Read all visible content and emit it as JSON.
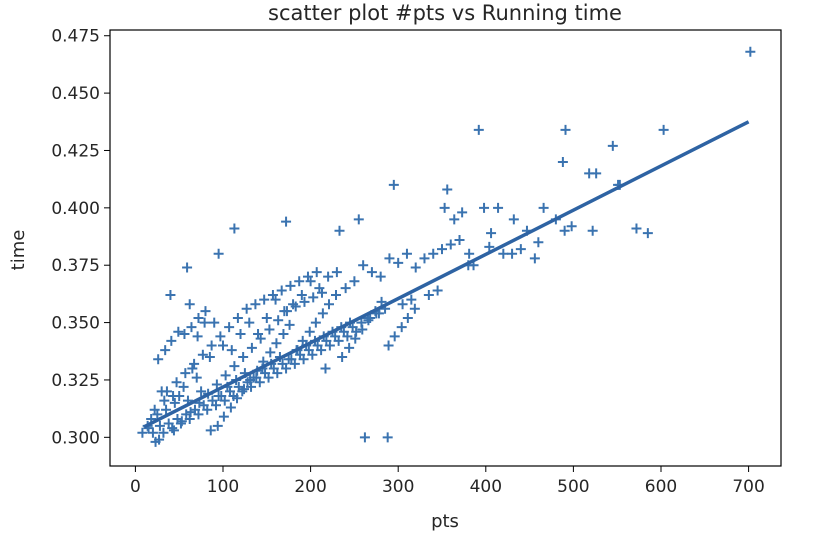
{
  "chart_data": {
    "type": "scatter",
    "title": "scatter plot #pts vs Running time",
    "xlabel": "pts",
    "ylabel": "time",
    "xlim": [
      -29,
      737
    ],
    "ylim": [
      0.2875,
      0.4775
    ],
    "xticks": [
      0,
      100,
      200,
      300,
      400,
      500,
      600,
      700
    ],
    "yticks": [
      0.3,
      0.325,
      0.35,
      0.375,
      0.4,
      0.425,
      0.45,
      0.475
    ],
    "xtick_labels": [
      "0",
      "100",
      "200",
      "300",
      "400",
      "500",
      "600",
      "700"
    ],
    "ytick_labels": [
      "0.300",
      "0.325",
      "0.350",
      "0.375",
      "0.400",
      "0.425",
      "0.450",
      "0.475"
    ],
    "grid": false,
    "marker": "+",
    "color": "#3a73b0",
    "regression_line": {
      "x": [
        10,
        700
      ],
      "y": [
        0.3046,
        0.4375
      ]
    },
    "series": [
      {
        "values_x": [
          702,
          392,
          491,
          603,
          545,
          553,
          526,
          488,
          518,
          364,
          432,
          480,
          466,
          414,
          490,
          551,
          572,
          585,
          498,
          522,
          447,
          430,
          456,
          353,
          373,
          398,
          404,
          295,
          356,
          406,
          381,
          386,
          255,
          233,
          172,
          113,
          95,
          59,
          14,
          23,
          8,
          40,
          62,
          72,
          80,
          90,
          30,
          43,
          55,
          65,
          70,
          85,
          100,
          110,
          120,
          130,
          140,
          150,
          160,
          170,
          180,
          190,
          200,
          210,
          220,
          230,
          240,
          250,
          260,
          270,
          280,
          290,
          300,
          310,
          320,
          330,
          340,
          350,
          360,
          370,
          380,
          420,
          440,
          460,
          25,
          35,
          45,
          50,
          60,
          75,
          95,
          105,
          115,
          125,
          135,
          145,
          155,
          165,
          175,
          185,
          195,
          205,
          215,
          225,
          235,
          245,
          265,
          275,
          285,
          305,
          315,
          335,
          345,
          20,
          28,
          38,
          48,
          58,
          68,
          78,
          88,
          98,
          108,
          118,
          128,
          138,
          148,
          158,
          168,
          178,
          188,
          198,
          208,
          218,
          228,
          238,
          248,
          258,
          268,
          278,
          288,
          32,
          42,
          52,
          62,
          72,
          82,
          92,
          102,
          112,
          122,
          132,
          142,
          152,
          162,
          172,
          182,
          192,
          202,
          212,
          222,
          232,
          242,
          252,
          262,
          15,
          18,
          22,
          27,
          33,
          36,
          44,
          47,
          53,
          57,
          63,
          67,
          73,
          77,
          83,
          87,
          93,
          97,
          103,
          107,
          113,
          117,
          123,
          127,
          133,
          137,
          143,
          147,
          153,
          157,
          163,
          167,
          173,
          177,
          183,
          187,
          193,
          197,
          203,
          207,
          213,
          217,
          26,
          34,
          41,
          49,
          56,
          64,
          71,
          79,
          86,
          94,
          101,
          109,
          116,
          124,
          131,
          139,
          146,
          154,
          161,
          169,
          176,
          184,
          191,
          199,
          206,
          214,
          221,
          229,
          236,
          244,
          251,
          259,
          266,
          274,
          281,
          289,
          296,
          304,
          311,
          319
        ],
        "values_y": [
          0.468,
          0.434,
          0.434,
          0.434,
          0.427,
          0.41,
          0.415,
          0.42,
          0.415,
          0.395,
          0.395,
          0.395,
          0.4,
          0.4,
          0.39,
          0.41,
          0.391,
          0.389,
          0.392,
          0.39,
          0.39,
          0.38,
          0.378,
          0.4,
          0.398,
          0.4,
          0.383,
          0.41,
          0.408,
          0.389,
          0.38,
          0.375,
          0.395,
          0.39,
          0.394,
          0.391,
          0.38,
          0.374,
          0.305,
          0.298,
          0.302,
          0.362,
          0.358,
          0.352,
          0.355,
          0.35,
          0.32,
          0.318,
          0.322,
          0.33,
          0.326,
          0.335,
          0.34,
          0.338,
          0.345,
          0.35,
          0.345,
          0.352,
          0.36,
          0.355,
          0.358,
          0.362,
          0.368,
          0.365,
          0.37,
          0.372,
          0.365,
          0.368,
          0.375,
          0.372,
          0.37,
          0.378,
          0.376,
          0.38,
          0.374,
          0.378,
          0.38,
          0.382,
          0.384,
          0.386,
          0.375,
          0.38,
          0.382,
          0.385,
          0.31,
          0.312,
          0.315,
          0.318,
          0.316,
          0.32,
          0.318,
          0.322,
          0.325,
          0.328,
          0.326,
          0.33,
          0.332,
          0.335,
          0.334,
          0.338,
          0.34,
          0.342,
          0.344,
          0.346,
          0.348,
          0.35,
          0.352,
          0.354,
          0.356,
          0.358,
          0.36,
          0.362,
          0.364,
          0.302,
          0.305,
          0.306,
          0.308,
          0.31,
          0.312,
          0.314,
          0.316,
          0.318,
          0.32,
          0.322,
          0.324,
          0.326,
          0.328,
          0.33,
          0.332,
          0.334,
          0.336,
          0.338,
          0.34,
          0.342,
          0.344,
          0.346,
          0.348,
          0.35,
          0.352,
          0.354,
          0.3,
          0.302,
          0.304,
          0.306,
          0.308,
          0.31,
          0.312,
          0.314,
          0.316,
          0.318,
          0.32,
          0.322,
          0.324,
          0.326,
          0.328,
          0.33,
          0.332,
          0.334,
          0.336,
          0.338,
          0.34,
          0.342,
          0.344,
          0.346,
          0.3,
          0.304,
          0.308,
          0.312,
          0.299,
          0.316,
          0.32,
          0.303,
          0.324,
          0.307,
          0.328,
          0.311,
          0.332,
          0.315,
          0.336,
          0.319,
          0.34,
          0.323,
          0.344,
          0.327,
          0.348,
          0.331,
          0.352,
          0.335,
          0.356,
          0.339,
          0.358,
          0.343,
          0.36,
          0.347,
          0.362,
          0.351,
          0.364,
          0.355,
          0.366,
          0.357,
          0.368,
          0.359,
          0.37,
          0.361,
          0.372,
          0.363,
          0.33,
          0.334,
          0.338,
          0.342,
          0.346,
          0.345,
          0.348,
          0.344,
          0.35,
          0.303,
          0.305,
          0.309,
          0.313,
          0.317,
          0.321,
          0.325,
          0.329,
          0.333,
          0.337,
          0.341,
          0.345,
          0.349,
          0.338,
          0.342,
          0.346,
          0.35,
          0.354,
          0.358,
          0.362,
          0.335,
          0.339,
          0.343,
          0.347,
          0.351,
          0.355,
          0.359,
          0.34,
          0.344,
          0.348,
          0.352,
          0.356
        ]
      }
    ]
  }
}
